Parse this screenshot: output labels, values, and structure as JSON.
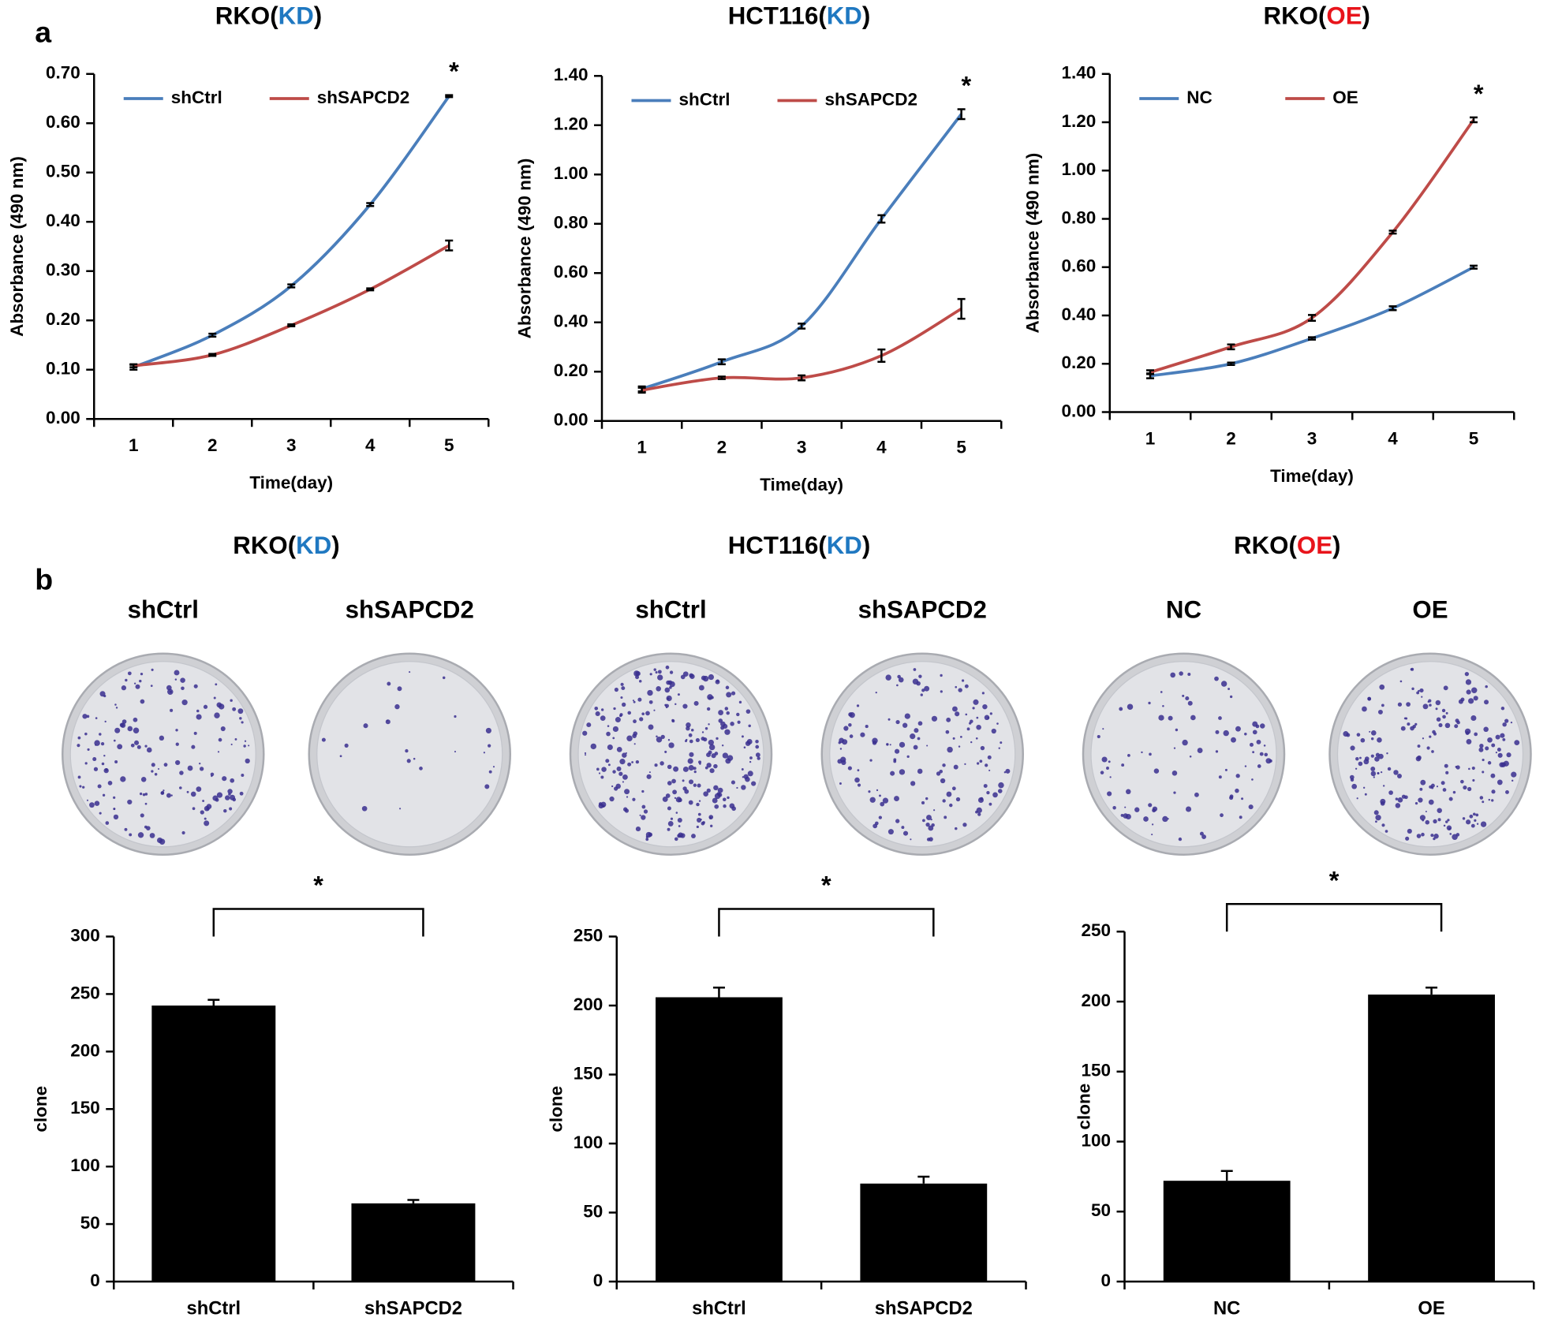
{
  "panel_labels": [
    "a",
    "b"
  ],
  "chart_data": [
    {
      "type": "line",
      "title": [
        "RKO(",
        "KD",
        ")"
      ],
      "title_colors": [
        "#000000",
        "#1f78c1",
        "#000000"
      ],
      "ylabel": "Absorbance (490 nm)",
      "xlabel": "Time(day)",
      "categories": [
        "1",
        "2",
        "3",
        "4",
        "5"
      ],
      "series": [
        {
          "name": "shCtrl",
          "color": "#4a7ebb",
          "values": [
            0.105,
            0.17,
            0.27,
            0.435,
            0.655
          ],
          "errors": [
            0.005,
            0.003,
            0.003,
            0.003,
            0.002
          ]
        },
        {
          "name": "shSAPCD2",
          "color": "#be4b48",
          "values": [
            0.108,
            0.13,
            0.19,
            0.263,
            0.352
          ],
          "errors": [
            0.003,
            0.002,
            0.002,
            0.002,
            0.01
          ]
        }
      ],
      "ylim": [
        0,
        0.7
      ],
      "yticks": [
        {
          "value": 0,
          "label": "0.00"
        },
        {
          "value": 0.1,
          "label": "0.10"
        },
        {
          "value": 0.2,
          "label": "0.20"
        },
        {
          "value": 0.3,
          "label": "0.30"
        },
        {
          "value": 0.4,
          "label": "0.40"
        },
        {
          "value": 0.5,
          "label": "0.50"
        },
        {
          "value": 0.6,
          "label": "0.60"
        },
        {
          "value": 0.7,
          "label": "0.70"
        }
      ],
      "annotation": "*",
      "legend": "upper left"
    },
    {
      "type": "line",
      "title": [
        "HCT116(",
        "KD",
        ")"
      ],
      "title_colors": [
        "#000000",
        "#1f78c1",
        "#000000"
      ],
      "ylabel": "Absorbance (490 nm)",
      "xlabel": "Time(day)",
      "categories": [
        "1",
        "2",
        "3",
        "4",
        "5"
      ],
      "series": [
        {
          "name": "shCtrl",
          "color": "#4a7ebb",
          "values": [
            0.13,
            0.24,
            0.385,
            0.82,
            1.245
          ],
          "errors": [
            0.01,
            0.01,
            0.01,
            0.015,
            0.02
          ]
        },
        {
          "name": "shSAPCD2",
          "color": "#be4b48",
          "values": [
            0.125,
            0.175,
            0.175,
            0.265,
            0.455
          ],
          "errors": [
            0.01,
            0.005,
            0.01,
            0.025,
            0.04
          ]
        }
      ],
      "ylim": [
        0,
        1.4
      ],
      "yticks": [
        {
          "value": 0,
          "label": "0.00"
        },
        {
          "value": 0.2,
          "label": "0.20"
        },
        {
          "value": 0.4,
          "label": "0.40"
        },
        {
          "value": 0.6,
          "label": "0.60"
        },
        {
          "value": 0.8,
          "label": "0.80"
        },
        {
          "value": 1,
          "label": "1.00"
        },
        {
          "value": 1.2,
          "label": "1.20"
        },
        {
          "value": 1.4,
          "label": "1.40"
        }
      ],
      "annotation": "*",
      "legend": "upper left"
    },
    {
      "type": "line",
      "title": [
        "RKO(",
        "OE",
        ")"
      ],
      "title_colors": [
        "#000000",
        "#e8141b",
        "#000000"
      ],
      "ylabel": "Absorbance (490 nm)",
      "xlabel": "Time(day)",
      "categories": [
        "1",
        "2",
        "3",
        "4",
        "5"
      ],
      "series": [
        {
          "name": "NC",
          "color": "#4a7ebb",
          "values": [
            0.15,
            0.2,
            0.305,
            0.43,
            0.6
          ],
          "errors": [
            0.01,
            0.005,
            0.005,
            0.008,
            0.006
          ]
        },
        {
          "name": "OE",
          "color": "#be4b48",
          "values": [
            0.165,
            0.27,
            0.39,
            0.745,
            1.21
          ],
          "errors": [
            0.008,
            0.01,
            0.012,
            0.006,
            0.01
          ]
        }
      ],
      "ylim": [
        0,
        1.4
      ],
      "yticks": [
        {
          "value": 0,
          "label": "0.00"
        },
        {
          "value": 0.2,
          "label": "0.20"
        },
        {
          "value": 0.4,
          "label": "0.40"
        },
        {
          "value": 0.6,
          "label": "0.60"
        },
        {
          "value": 0.8,
          "label": "0.80"
        },
        {
          "value": 1,
          "label": "1.00"
        },
        {
          "value": 1.2,
          "label": "1.20"
        },
        {
          "value": 1.4,
          "label": "1.40"
        }
      ],
      "annotation": "*",
      "legend": "upper left"
    },
    {
      "type": "bar",
      "title": [
        "RKO(",
        "KD",
        ")"
      ],
      "title_colors": [
        "#000000",
        "#1f78c1",
        "#000000"
      ],
      "plate_labels": [
        "shCtrl",
        "shSAPCD2"
      ],
      "ylabel": "clone",
      "categories": [
        "shCtrl",
        "shSAPCD2"
      ],
      "values": [
        240,
        68
      ],
      "errors": [
        5,
        3
      ],
      "color": "#000000",
      "ylim": [
        0,
        300
      ],
      "yticks": [
        0,
        50,
        100,
        150,
        200,
        250,
        300
      ],
      "annotation": "*"
    },
    {
      "type": "bar",
      "title": [
        "HCT116(",
        "KD",
        ")"
      ],
      "title_colors": [
        "#000000",
        "#1f78c1",
        "#000000"
      ],
      "plate_labels": [
        "shCtrl",
        "shSAPCD2"
      ],
      "ylabel": "clone",
      "categories": [
        "shCtrl",
        "shSAPCD2"
      ],
      "values": [
        206,
        71
      ],
      "errors": [
        7,
        5
      ],
      "color": "#000000",
      "ylim": [
        0,
        250
      ],
      "yticks": [
        0,
        50,
        100,
        150,
        200,
        250
      ],
      "annotation": "*"
    },
    {
      "type": "bar",
      "title": [
        "RKO(",
        "OE",
        ")"
      ],
      "title_colors": [
        "#000000",
        "#e8141b",
        "#000000"
      ],
      "plate_labels": [
        "NC",
        "OE"
      ],
      "ylabel": "clone",
      "categories": [
        "NC",
        "OE"
      ],
      "values": [
        72,
        205
      ],
      "errors": [
        7,
        5
      ],
      "color": "#000000",
      "ylim": [
        0,
        250
      ],
      "yticks": [
        0,
        50,
        100,
        150,
        200,
        250
      ],
      "annotation": "*"
    }
  ]
}
